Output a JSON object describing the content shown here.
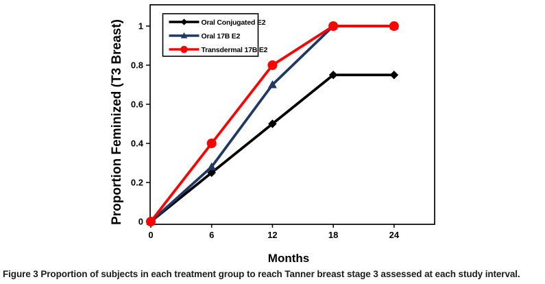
{
  "figure": {
    "caption_label": "Figure 3",
    "caption_text": "Proportion of subjects in each treatment group to reach Tanner breast stage 3 assessed at each study interval."
  },
  "chart_data": {
    "type": "line",
    "title": "",
    "xlabel": "Months",
    "ylabel": "Proportion Feminized (T3 Breast)",
    "x": [
      0,
      6,
      12,
      18,
      24
    ],
    "series": [
      {
        "name": "Oral Conjugated E2",
        "color": "#000000",
        "marker": "diamond",
        "values": [
          0,
          0.25,
          0.5,
          0.75,
          0.75
        ]
      },
      {
        "name": "Oral 17B E2",
        "color": "#1f3864",
        "marker": "triangle",
        "values": [
          0,
          0.28,
          0.7,
          1,
          1
        ]
      },
      {
        "name": "Transdermal 17B E2",
        "color": "#fe0000",
        "marker": "circle",
        "values": [
          0,
          0.4,
          0.8,
          1,
          1
        ]
      }
    ],
    "xticks": [
      0,
      6,
      12,
      18,
      24
    ],
    "yticks": [
      "0",
      "0.2",
      "0.4",
      "0.6",
      "0.8",
      "1"
    ],
    "ytick_values": [
      0,
      0.2,
      0.4,
      0.6,
      0.8,
      1
    ],
    "xlim": [
      0,
      28
    ],
    "ylim": [
      0,
      1.1
    ],
    "grid": false,
    "legend_position": "top-left-inside",
    "frame_color": "#000000",
    "background_color": "#ffffff"
  }
}
